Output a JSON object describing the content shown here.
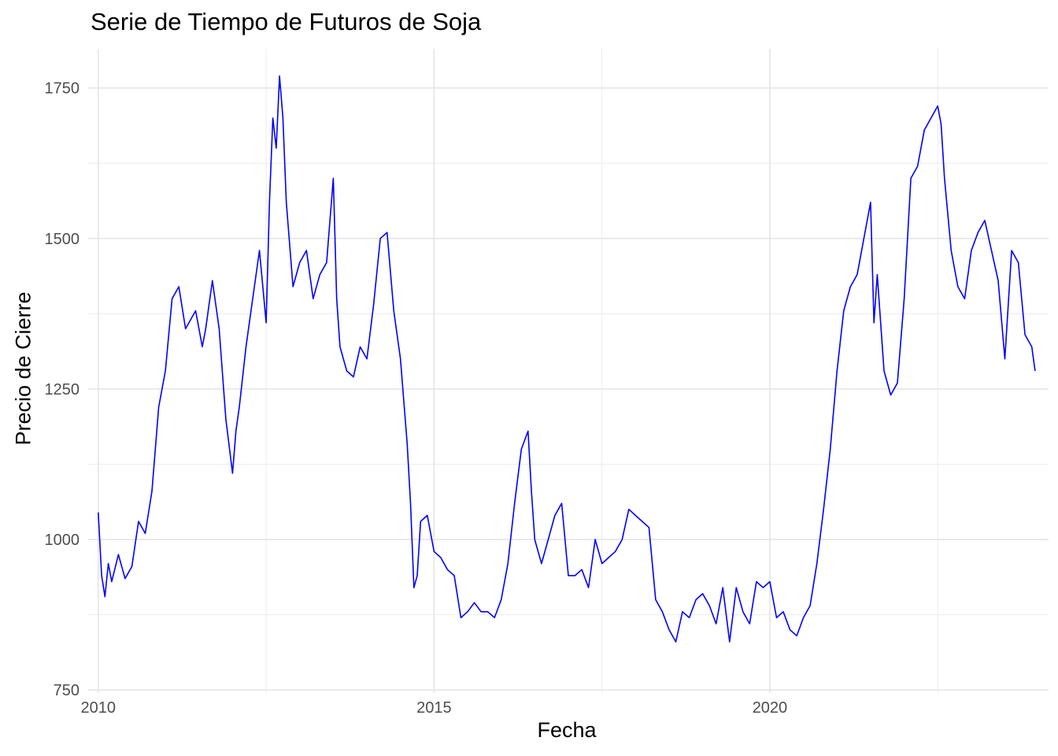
{
  "chart_data": {
    "type": "line",
    "title": "Serie de Tiempo de Futuros de Soja",
    "xlabel": "Fecha",
    "ylabel": "Precio de Cierre",
    "xlim": [
      2009.85,
      2024.15
    ],
    "ylim": [
      745,
      1815
    ],
    "x_ticks": [
      2010,
      2015,
      2020
    ],
    "x_tick_labels": [
      "2010",
      "2015",
      "2020"
    ],
    "x_minor_ticks": [
      2012.5,
      2017.5,
      2022.5
    ],
    "y_ticks": [
      750,
      1000,
      1250,
      1500,
      1750
    ],
    "y_tick_labels": [
      "750",
      "1000",
      "1250",
      "1500",
      "1750"
    ],
    "y_minor_ticks": [
      875,
      1125,
      1375,
      1625
    ],
    "grid": true,
    "line_color": "#0000ff",
    "series": [
      {
        "x": [
          2010.0,
          2010.05,
          2010.1,
          2010.15,
          2010.2,
          2010.3,
          2010.4,
          2010.5,
          2010.6,
          2010.7,
          2010.8,
          2010.9,
          2011.0,
          2011.1,
          2011.2,
          2011.3,
          2011.45,
          2011.55,
          2011.6,
          2011.7,
          2011.8,
          2011.9,
          2012.0,
          2012.05,
          2012.1,
          2012.2,
          2012.3,
          2012.4,
          2012.5,
          2012.55,
          2012.6,
          2012.65,
          2012.7,
          2012.75,
          2012.8,
          2012.9,
          2013.0,
          2013.1,
          2013.2,
          2013.3,
          2013.4,
          2013.5,
          2013.55,
          2013.6,
          2013.7,
          2013.8,
          2013.9,
          2014.0,
          2014.1,
          2014.2,
          2014.3,
          2014.4,
          2014.5,
          2014.6,
          2014.65,
          2014.7,
          2014.75,
          2014.8,
          2014.9,
          2015.0,
          2015.1,
          2015.2,
          2015.3,
          2015.4,
          2015.5,
          2015.6,
          2015.7,
          2015.8,
          2015.9,
          2016.0,
          2016.1,
          2016.2,
          2016.3,
          2016.4,
          2016.45,
          2016.5,
          2016.6,
          2016.7,
          2016.8,
          2016.9,
          2017.0,
          2017.1,
          2017.2,
          2017.3,
          2017.4,
          2017.5,
          2017.6,
          2017.7,
          2017.8,
          2017.9,
          2018.0,
          2018.1,
          2018.2,
          2018.3,
          2018.4,
          2018.5,
          2018.6,
          2018.7,
          2018.8,
          2018.9,
          2019.0,
          2019.1,
          2019.2,
          2019.3,
          2019.4,
          2019.5,
          2019.6,
          2019.7,
          2019.8,
          2019.9,
          2020.0,
          2020.1,
          2020.2,
          2020.3,
          2020.4,
          2020.5,
          2020.6,
          2020.7,
          2020.8,
          2020.9,
          2021.0,
          2021.1,
          2021.2,
          2021.3,
          2021.4,
          2021.5,
          2021.55,
          2021.6,
          2021.7,
          2021.8,
          2021.9,
          2022.0,
          2022.1,
          2022.2,
          2022.3,
          2022.4,
          2022.5,
          2022.55,
          2022.6,
          2022.7,
          2022.8,
          2022.9,
          2023.0,
          2023.1,
          2023.2,
          2023.3,
          2023.4,
          2023.5,
          2023.6,
          2023.7,
          2023.8,
          2023.9,
          2023.95
        ],
        "y": [
          1045,
          940,
          905,
          960,
          930,
          975,
          935,
          955,
          1030,
          1010,
          1080,
          1220,
          1280,
          1400,
          1420,
          1350,
          1380,
          1320,
          1350,
          1430,
          1350,
          1200,
          1110,
          1180,
          1220,
          1320,
          1400,
          1480,
          1360,
          1560,
          1700,
          1650,
          1770,
          1700,
          1560,
          1420,
          1460,
          1480,
          1400,
          1440,
          1460,
          1600,
          1400,
          1320,
          1280,
          1270,
          1320,
          1300,
          1390,
          1500,
          1510,
          1380,
          1300,
          1160,
          1060,
          920,
          940,
          1030,
          1040,
          980,
          970,
          950,
          940,
          870,
          880,
          895,
          880,
          880,
          870,
          900,
          960,
          1060,
          1150,
          1180,
          1080,
          1000,
          960,
          1000,
          1040,
          1060,
          940,
          940,
          950,
          920,
          1000,
          960,
          970,
          980,
          1000,
          1050,
          1040,
          1030,
          1020,
          900,
          880,
          850,
          830,
          880,
          870,
          900,
          910,
          890,
          860,
          920,
          830,
          920,
          880,
          860,
          930,
          920,
          930,
          870,
          880,
          850,
          840,
          870,
          890,
          960,
          1050,
          1150,
          1280,
          1380,
          1420,
          1440,
          1500,
          1560,
          1360,
          1440,
          1280,
          1240,
          1260,
          1400,
          1600,
          1620,
          1680,
          1700,
          1720,
          1690,
          1600,
          1480,
          1420,
          1400,
          1480,
          1510,
          1530,
          1480,
          1430,
          1300,
          1480,
          1460,
          1340,
          1320,
          1280
        ]
      }
    ]
  }
}
